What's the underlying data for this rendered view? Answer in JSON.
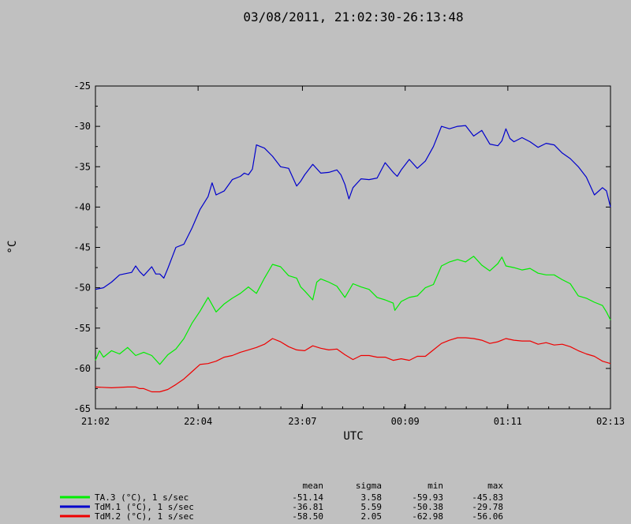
{
  "chart_data": {
    "type": "line",
    "title": "03/08/2011, 21:02:30-26:13:48",
    "xlabel": "UTC",
    "ylabel": "°C",
    "x_ticks": [
      "21:02",
      "22:04",
      "23:07",
      "00:09",
      "01:11",
      "02:13"
    ],
    "y_ticks": [
      -25,
      -30,
      -35,
      -40,
      -45,
      -50,
      -55,
      -60,
      -65
    ],
    "ylim": [
      -65,
      -25
    ],
    "x_hours": [
      0,
      1.033,
      2.083,
      3.117,
      4.15,
      5.183
    ],
    "grid": false,
    "series": [
      {
        "name": "TA.3 (°C), 1 s/sec",
        "color": "#00ee00",
        "points": [
          [
            0.0,
            -59.0
          ],
          [
            0.05,
            -57.8
          ],
          [
            0.1,
            -58.6
          ],
          [
            0.2,
            -57.8
          ],
          [
            0.3,
            -58.2
          ],
          [
            0.4,
            -57.4
          ],
          [
            0.5,
            -58.4
          ],
          [
            0.6,
            -58.0
          ],
          [
            0.7,
            -58.4
          ],
          [
            0.8,
            -59.5
          ],
          [
            0.9,
            -58.3
          ],
          [
            1.0,
            -57.6
          ],
          [
            1.1,
            -56.3
          ],
          [
            1.2,
            -54.4
          ],
          [
            1.3,
            -52.9
          ],
          [
            1.4,
            -51.2
          ],
          [
            1.5,
            -53.0
          ],
          [
            1.6,
            -52.0
          ],
          [
            1.7,
            -51.3
          ],
          [
            1.8,
            -50.7
          ],
          [
            1.9,
            -49.9
          ],
          [
            2.0,
            -50.7
          ],
          [
            2.1,
            -48.8
          ],
          [
            2.2,
            -47.1
          ],
          [
            2.3,
            -47.4
          ],
          [
            2.4,
            -48.5
          ],
          [
            2.5,
            -48.8
          ],
          [
            2.55,
            -49.9
          ],
          [
            2.6,
            -50.4
          ],
          [
            2.7,
            -51.5
          ],
          [
            2.75,
            -49.3
          ],
          [
            2.8,
            -48.9
          ],
          [
            2.9,
            -49.3
          ],
          [
            3.0,
            -49.8
          ],
          [
            3.1,
            -51.2
          ],
          [
            3.2,
            -49.5
          ],
          [
            3.3,
            -49.9
          ],
          [
            3.4,
            -50.2
          ],
          [
            3.5,
            -51.2
          ],
          [
            3.6,
            -51.5
          ],
          [
            3.7,
            -51.9
          ],
          [
            3.72,
            -52.8
          ],
          [
            3.8,
            -51.7
          ],
          [
            3.9,
            -51.2
          ],
          [
            4.0,
            -51.0
          ],
          [
            4.1,
            -50.0
          ],
          [
            4.2,
            -49.6
          ],
          [
            4.3,
            -47.3
          ],
          [
            4.4,
            -46.8
          ],
          [
            4.5,
            -46.5
          ],
          [
            4.6,
            -46.8
          ],
          [
            4.7,
            -46.1
          ],
          [
            4.8,
            -47.2
          ],
          [
            4.9,
            -47.9
          ],
          [
            5.0,
            -47.0
          ],
          [
            5.05,
            -46.2
          ],
          [
            5.1,
            -47.3
          ],
          [
            5.2,
            -47.5
          ],
          [
            5.3,
            -47.8
          ],
          [
            5.4,
            -47.6
          ],
          [
            5.5,
            -48.2
          ],
          [
            5.6,
            -48.4
          ],
          [
            5.7,
            -48.4
          ],
          [
            5.8,
            -49.0
          ],
          [
            5.9,
            -49.5
          ],
          [
            6.0,
            -51.0
          ],
          [
            6.1,
            -51.3
          ],
          [
            6.2,
            -51.8
          ],
          [
            6.3,
            -52.2
          ],
          [
            6.35,
            -53.0
          ],
          [
            6.4,
            -54.0
          ]
        ]
      },
      {
        "name": "TdM.1 (°C), 1 s/sec",
        "color": "#0000cc",
        "points": [
          [
            0.0,
            -50.2
          ],
          [
            0.1,
            -50.0
          ],
          [
            0.2,
            -49.3
          ],
          [
            0.3,
            -48.4
          ],
          [
            0.4,
            -48.2
          ],
          [
            0.45,
            -48.1
          ],
          [
            0.5,
            -47.3
          ],
          [
            0.55,
            -48.0
          ],
          [
            0.6,
            -48.5
          ],
          [
            0.7,
            -47.4
          ],
          [
            0.75,
            -48.3
          ],
          [
            0.8,
            -48.3
          ],
          [
            0.85,
            -48.8
          ],
          [
            0.9,
            -47.6
          ],
          [
            0.95,
            -46.3
          ],
          [
            1.0,
            -45.0
          ],
          [
            1.1,
            -44.6
          ],
          [
            1.2,
            -42.6
          ],
          [
            1.3,
            -40.3
          ],
          [
            1.4,
            -38.7
          ],
          [
            1.45,
            -37.0
          ],
          [
            1.5,
            -38.5
          ],
          [
            1.6,
            -38.0
          ],
          [
            1.7,
            -36.6
          ],
          [
            1.8,
            -36.2
          ],
          [
            1.85,
            -35.8
          ],
          [
            1.9,
            -36.0
          ],
          [
            1.95,
            -35.3
          ],
          [
            2.0,
            -32.3
          ],
          [
            2.05,
            -32.5
          ],
          [
            2.1,
            -32.7
          ],
          [
            2.2,
            -33.7
          ],
          [
            2.3,
            -35.0
          ],
          [
            2.4,
            -35.2
          ],
          [
            2.5,
            -37.4
          ],
          [
            2.55,
            -36.8
          ],
          [
            2.6,
            -36.0
          ],
          [
            2.7,
            -34.7
          ],
          [
            2.8,
            -35.8
          ],
          [
            2.9,
            -35.7
          ],
          [
            3.0,
            -35.4
          ],
          [
            3.05,
            -36.0
          ],
          [
            3.1,
            -37.2
          ],
          [
            3.15,
            -39.0
          ],
          [
            3.2,
            -37.6
          ],
          [
            3.3,
            -36.5
          ],
          [
            3.4,
            -36.6
          ],
          [
            3.5,
            -36.4
          ],
          [
            3.6,
            -34.5
          ],
          [
            3.7,
            -35.7
          ],
          [
            3.75,
            -36.2
          ],
          [
            3.8,
            -35.4
          ],
          [
            3.9,
            -34.1
          ],
          [
            4.0,
            -35.2
          ],
          [
            4.1,
            -34.3
          ],
          [
            4.2,
            -32.5
          ],
          [
            4.3,
            -30.0
          ],
          [
            4.4,
            -30.3
          ],
          [
            4.5,
            -30.0
          ],
          [
            4.6,
            -29.9
          ],
          [
            4.7,
            -31.2
          ],
          [
            4.8,
            -30.5
          ],
          [
            4.9,
            -32.2
          ],
          [
            5.0,
            -32.4
          ],
          [
            5.05,
            -31.8
          ],
          [
            5.1,
            -30.3
          ],
          [
            5.15,
            -31.5
          ],
          [
            5.2,
            -31.9
          ],
          [
            5.3,
            -31.4
          ],
          [
            5.4,
            -31.9
          ],
          [
            5.5,
            -32.6
          ],
          [
            5.6,
            -32.1
          ],
          [
            5.7,
            -32.3
          ],
          [
            5.8,
            -33.3
          ],
          [
            5.9,
            -34.0
          ],
          [
            6.0,
            -35.0
          ],
          [
            6.1,
            -36.3
          ],
          [
            6.2,
            -38.5
          ],
          [
            6.3,
            -37.6
          ],
          [
            6.35,
            -38.0
          ],
          [
            6.4,
            -40.0
          ]
        ]
      },
      {
        "name": "TdM.2 (°C), 1 s/sec",
        "color": "#ee0000",
        "points": [
          [
            0.0,
            -62.3
          ],
          [
            0.2,
            -62.4
          ],
          [
            0.4,
            -62.3
          ],
          [
            0.5,
            -62.3
          ],
          [
            0.55,
            -62.5
          ],
          [
            0.6,
            -62.5
          ],
          [
            0.7,
            -62.9
          ],
          [
            0.8,
            -62.9
          ],
          [
            0.9,
            -62.6
          ],
          [
            1.0,
            -62.0
          ],
          [
            1.1,
            -61.3
          ],
          [
            1.2,
            -60.4
          ],
          [
            1.3,
            -59.5
          ],
          [
            1.4,
            -59.4
          ],
          [
            1.5,
            -59.1
          ],
          [
            1.6,
            -58.6
          ],
          [
            1.7,
            -58.4
          ],
          [
            1.8,
            -58.0
          ],
          [
            1.9,
            -57.7
          ],
          [
            2.0,
            -57.4
          ],
          [
            2.1,
            -57.0
          ],
          [
            2.2,
            -56.3
          ],
          [
            2.3,
            -56.7
          ],
          [
            2.4,
            -57.3
          ],
          [
            2.5,
            -57.7
          ],
          [
            2.6,
            -57.8
          ],
          [
            2.7,
            -57.2
          ],
          [
            2.8,
            -57.5
          ],
          [
            2.9,
            -57.7
          ],
          [
            3.0,
            -57.6
          ],
          [
            3.1,
            -58.3
          ],
          [
            3.2,
            -58.9
          ],
          [
            3.3,
            -58.4
          ],
          [
            3.4,
            -58.4
          ],
          [
            3.5,
            -58.6
          ],
          [
            3.6,
            -58.6
          ],
          [
            3.7,
            -59.0
          ],
          [
            3.8,
            -58.8
          ],
          [
            3.9,
            -59.0
          ],
          [
            4.0,
            -58.5
          ],
          [
            4.1,
            -58.5
          ],
          [
            4.2,
            -57.7
          ],
          [
            4.3,
            -56.9
          ],
          [
            4.4,
            -56.5
          ],
          [
            4.5,
            -56.2
          ],
          [
            4.6,
            -56.2
          ],
          [
            4.7,
            -56.3
          ],
          [
            4.8,
            -56.5
          ],
          [
            4.9,
            -56.9
          ],
          [
            5.0,
            -56.7
          ],
          [
            5.1,
            -56.3
          ],
          [
            5.2,
            -56.5
          ],
          [
            5.3,
            -56.6
          ],
          [
            5.4,
            -56.6
          ],
          [
            5.5,
            -57.0
          ],
          [
            5.6,
            -56.8
          ],
          [
            5.7,
            -57.1
          ],
          [
            5.8,
            -57.0
          ],
          [
            5.9,
            -57.3
          ],
          [
            6.0,
            -57.8
          ],
          [
            6.1,
            -58.2
          ],
          [
            6.2,
            -58.5
          ],
          [
            6.3,
            -59.1
          ],
          [
            6.4,
            -59.4
          ]
        ]
      }
    ],
    "stats": {
      "headers": [
        "mean",
        "sigma",
        "min",
        "max"
      ],
      "rows": [
        {
          "label": "TA.3 (°C), 1 s/sec",
          "color": "#00ee00",
          "values": [
            "-51.14",
            "3.58",
            "-59.93",
            "-45.83"
          ]
        },
        {
          "label": "TdM.1 (°C), 1 s/sec",
          "color": "#0000cc",
          "values": [
            "-36.81",
            "5.59",
            "-50.38",
            "-29.78"
          ]
        },
        {
          "label": "TdM.2 (°C), 1 s/sec",
          "color": "#ee0000",
          "values": [
            "-58.50",
            "2.05",
            "-62.98",
            "-56.06"
          ]
        }
      ]
    }
  }
}
